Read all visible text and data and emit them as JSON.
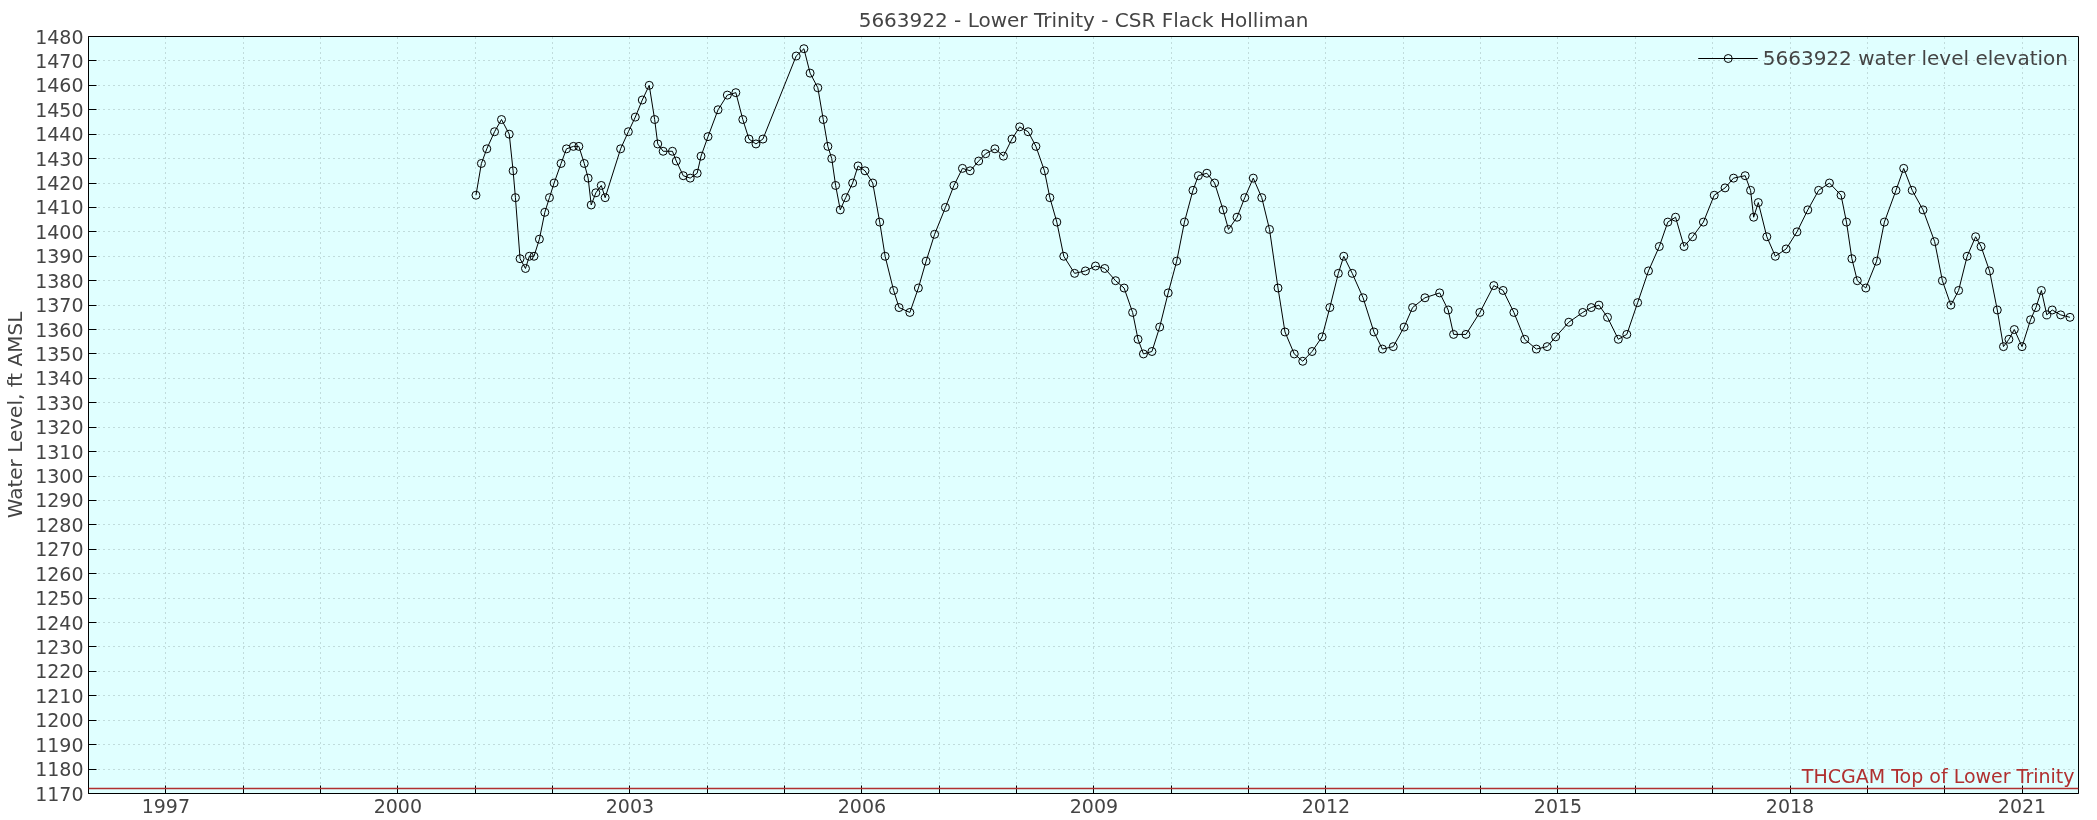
{
  "chart_data": {
    "type": "line",
    "title": "5663922 - Lower Trinity - CSR Flack Holliman",
    "ylabel": "Water Level, ft AMSL",
    "xlim": [
      1996.0,
      2021.73
    ],
    "ylim": [
      1170,
      1480
    ],
    "xticks": [
      {
        "value": 1996,
        "label": null
      },
      1997,
      {
        "value": 1998,
        "label": null
      },
      {
        "value": 1999,
        "label": null
      },
      2000,
      {
        "value": 2001,
        "label": null
      },
      {
        "value": 2002,
        "label": null
      },
      2003,
      {
        "value": 2004,
        "label": null
      },
      {
        "value": 2005,
        "label": null
      },
      2006,
      {
        "value": 2007,
        "label": null
      },
      {
        "value": 2008,
        "label": null
      },
      2009,
      {
        "value": 2010,
        "label": null
      },
      {
        "value": 2011,
        "label": null
      },
      2012,
      {
        "value": 2013,
        "label": null
      },
      {
        "value": 2014,
        "label": null
      },
      2015,
      {
        "value": 2016,
        "label": null
      },
      {
        "value": 2017,
        "label": null
      },
      2018,
      {
        "value": 2019,
        "label": null
      },
      {
        "value": 2020,
        "label": null
      },
      2021
    ],
    "yticks": [
      1170,
      1180,
      1190,
      1200,
      1210,
      1220,
      1230,
      1240,
      1250,
      1260,
      1270,
      1280,
      1290,
      1300,
      1310,
      1320,
      1330,
      1340,
      1350,
      1360,
      1370,
      1380,
      1390,
      1400,
      1410,
      1420,
      1430,
      1440,
      1450,
      1460,
      1470,
      1480
    ],
    "grid": true,
    "legend": "top right",
    "marker": "circle",
    "line_style": "solid",
    "ref_lines": [
      {
        "axis": "y",
        "value": 1172,
        "label": "THCGAM Top of Lower Trinity",
        "color": "#b03030"
      }
    ],
    "series": [
      {
        "name": "5663922 water level elevation",
        "color": "#000000",
        "x": [
          2001.01,
          2001.08,
          2001.15,
          2001.25,
          2001.34,
          2001.44,
          2001.49,
          2001.52,
          2001.58,
          2001.65,
          2001.7,
          2001.76,
          2001.83,
          2001.9,
          2001.96,
          2002.02,
          2002.11,
          2002.18,
          2002.27,
          2002.34,
          2002.41,
          2002.46,
          2002.5,
          2002.56,
          2002.63,
          2002.68,
          2002.88,
          2002.98,
          2003.07,
          2003.16,
          2003.25,
          2003.32,
          2003.36,
          2003.43,
          2003.55,
          2003.6,
          2003.69,
          2003.78,
          2003.87,
          2003.92,
          2004.01,
          2004.14,
          2004.26,
          2004.37,
          2004.46,
          2004.54,
          2004.63,
          2004.72,
          2005.15,
          2005.25,
          2005.33,
          2005.43,
          2005.5,
          2005.56,
          2005.61,
          2005.66,
          2005.72,
          2005.79,
          2005.88,
          2005.95,
          2006.04,
          2006.14,
          2006.23,
          2006.3,
          2006.41,
          2006.48,
          2006.62,
          2006.73,
          2006.83,
          2006.94,
          2007.08,
          2007.19,
          2007.3,
          2007.4,
          2007.51,
          2007.6,
          2007.72,
          2007.83,
          2007.94,
          2008.04,
          2008.15,
          2008.25,
          2008.36,
          2008.43,
          2008.52,
          2008.61,
          2008.75,
          2008.89,
          2009.02,
          2009.14,
          2009.28,
          2009.39,
          2009.5,
          2009.57,
          2009.64,
          2009.75,
          2009.85,
          2009.96,
          2010.07,
          2010.17,
          2010.28,
          2010.35,
          2010.46,
          2010.56,
          2010.67,
          2010.74,
          2010.85,
          2010.95,
          2011.06,
          2011.17,
          2011.27,
          2011.38,
          2011.47,
          2011.59,
          2011.7,
          2011.82,
          2011.95,
          2012.05,
          2012.16,
          2012.23,
          2012.34,
          2012.48,
          2012.62,
          2012.73,
          2012.87,
          2013.01,
          2013.12,
          2013.28,
          2013.47,
          2013.58,
          2013.65,
          2013.81,
          2013.99,
          2014.17,
          2014.29,
          2014.43,
          2014.57,
          2014.72,
          2014.86,
          2014.97,
          2015.14,
          2015.32,
          2015.43,
          2015.53,
          2015.64,
          2015.78,
          2015.89,
          2016.03,
          2016.17,
          2016.31,
          2016.42,
          2016.52,
          2016.63,
          2016.74,
          2016.88,
          2017.02,
          2017.16,
          2017.27,
          2017.42,
          2017.49,
          2017.53,
          2017.59,
          2017.7,
          2017.81,
          2017.95,
          2018.09,
          2018.23,
          2018.37,
          2018.51,
          2018.66,
          2018.73,
          2018.8,
          2018.87,
          2018.98,
          2019.12,
          2019.22,
          2019.37,
          2019.47,
          2019.58,
          2019.72,
          2019.87,
          2019.97,
          2020.08,
          2020.18,
          2020.29,
          2020.4,
          2020.47,
          2020.58,
          2020.68,
          2020.76,
          2020.83,
          2020.9,
          2021.0,
          2021.11,
          2021.18,
          2021.25,
          2021.32,
          2021.39,
          2021.5,
          2021.62
        ],
        "values": [
          1415,
          1428,
          1434,
          1441,
          1446,
          1440,
          1425,
          1414,
          1389,
          1385,
          1390,
          1390,
          1397,
          1408,
          1414,
          1420,
          1428,
          1434,
          1435,
          1435,
          1428,
          1422,
          1411,
          1416,
          1419,
          1414,
          1434,
          1441,
          1447,
          1454,
          1460,
          1446,
          1436,
          1433,
          1433,
          1429,
          1423,
          1422,
          1424,
          1431,
          1439,
          1450,
          1456,
          1457,
          1446,
          1438,
          1436,
          1438,
          1472,
          1475,
          1465,
          1459,
          1446,
          1435,
          1430,
          1419,
          1409,
          1414,
          1420,
          1427,
          1425,
          1420,
          1404,
          1390,
          1376,
          1369,
          1367,
          1377,
          1388,
          1399,
          1410,
          1419,
          1426,
          1425,
          1429,
          1432,
          1434,
          1431,
          1438,
          1443,
          1441,
          1435,
          1425,
          1414,
          1404,
          1390,
          1383,
          1384,
          1386,
          1385,
          1380,
          1377,
          1367,
          1356,
          1350,
          1351,
          1361,
          1375,
          1388,
          1404,
          1417,
          1423,
          1424,
          1420,
          1409,
          1401,
          1406,
          1414,
          1422,
          1414,
          1401,
          1377,
          1359,
          1350,
          1347,
          1351,
          1357,
          1369,
          1383,
          1390,
          1383,
          1373,
          1359,
          1352,
          1353,
          1361,
          1369,
          1373,
          1375,
          1368,
          1358,
          1358,
          1367,
          1378,
          1376,
          1367,
          1356,
          1352,
          1353,
          1357,
          1363,
          1367,
          1369,
          1370,
          1365,
          1356,
          1358,
          1371,
          1384,
          1394,
          1404,
          1406,
          1394,
          1398,
          1404,
          1415,
          1418,
          1422,
          1423,
          1417,
          1406,
          1412,
          1398,
          1390,
          1393,
          1400,
          1409,
          1417,
          1420,
          1415,
          1404,
          1389,
          1380,
          1377,
          1388,
          1404,
          1417,
          1426,
          1417,
          1409,
          1396,
          1380,
          1370,
          1376,
          1390,
          1398,
          1394,
          1384,
          1368,
          1353,
          1356,
          1360,
          1353,
          1364,
          1369,
          1376,
          1366,
          1368,
          1366,
          1365
        ]
      }
    ]
  }
}
